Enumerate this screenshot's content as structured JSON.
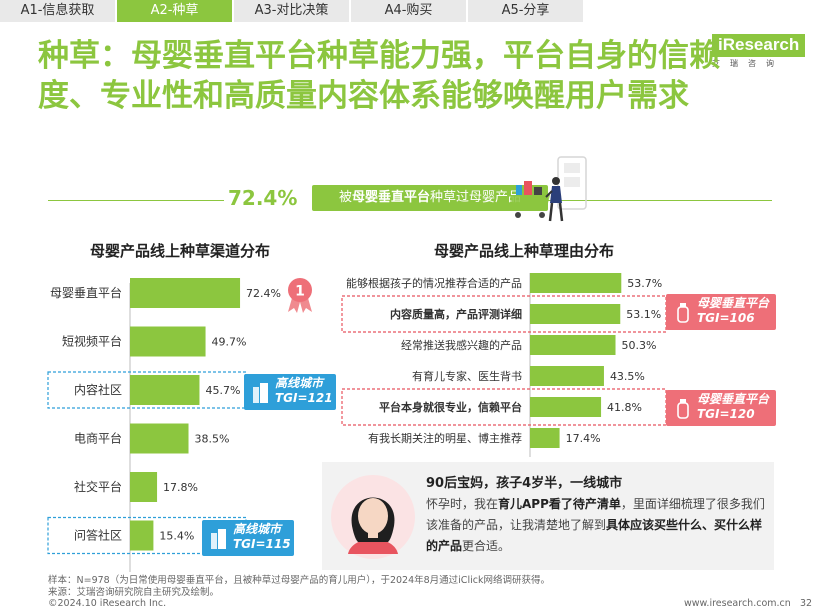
{
  "tabs": [
    "A1-信息获取",
    "A2-种草",
    "A3-对比决策",
    "A4-购买",
    "A5-分享"
  ],
  "active_tab": 1,
  "logo": {
    "word": "iResearch",
    "cn": "艾瑞咨询"
  },
  "title": "种草：母婴垂直平台种草能力强，平台自身的信赖度、专业性和高质量内容体系能够唤醒用户需求",
  "highlight": {
    "value": "72.4%",
    "prefix": "被",
    "bold": "母婴垂直平台",
    "suffix": "种草过母婴产品"
  },
  "colors": {
    "accent": "#8cc63f",
    "bar": "#8cc63f",
    "red": "#e8545f",
    "blue": "#2e9fd9"
  },
  "chart_data": [
    {
      "type": "bar",
      "orientation": "horizontal",
      "title": "母婴产品线上种草渠道分布",
      "categories": [
        "母婴垂直平台",
        "短视频平台",
        "内容社区",
        "电商平台",
        "社交平台",
        "问答社区"
      ],
      "values": [
        72.4,
        49.7,
        45.7,
        38.5,
        17.8,
        15.4
      ],
      "labels": [
        "72.4%",
        "49.7%",
        "45.7%",
        "38.5%",
        "17.8%",
        "15.4%"
      ],
      "xlim": [
        0,
        100
      ],
      "grid": false,
      "callouts": [
        {
          "row": 2,
          "line1": "高线城市",
          "line2": "TGI=121"
        },
        {
          "row": 5,
          "line1": "高线城市",
          "line2": "TGI=115"
        }
      ]
    },
    {
      "type": "bar",
      "orientation": "horizontal",
      "title": "母婴产品线上种草理由分布",
      "categories": [
        "能够根据孩子的情况推荐合适的产品",
        "内容质量高，产品评测详细",
        "经常推送我感兴趣的产品",
        "有育儿专家、医生背书",
        "平台本身就很专业，信赖平台",
        "有我长期关注的明星、博主推荐"
      ],
      "values": [
        53.7,
        53.1,
        50.3,
        43.5,
        41.8,
        17.4
      ],
      "labels": [
        "53.7%",
        "53.1%",
        "50.3%",
        "43.5%",
        "41.8%",
        "17.4%"
      ],
      "xlim": [
        0,
        100
      ],
      "grid": false,
      "bold_rows": [
        1,
        4
      ],
      "callouts": [
        {
          "row": 1,
          "line1": "母婴垂直平台",
          "line2": "TGI=106"
        },
        {
          "row": 4,
          "line1": "母婴垂直平台",
          "line2": "TGI=120"
        }
      ]
    }
  ],
  "rank_badge": "1",
  "quote": {
    "title": "90后宝妈，孩子4岁半，一线城市",
    "p1": "怀孕时，我在",
    "b1": "育儿APP看了待产清单",
    "p2": "，里面详细梳理了很多我们该准备的产品，让我清楚地了解到",
    "b2": "具体应该买些什么、买什么样的产品",
    "p3": "更合适。"
  },
  "notes": {
    "sample": "样本：N=978（为日常使用母婴垂直平台，且被种草过母婴产品的育儿用户），于2024年8月通过iClick网络调研获得。",
    "source": "来源：艾瑞咨询研究院自主研究及绘制。"
  },
  "footer": {
    "copyright": "©2024.10 iResearch Inc.",
    "site": "www.iresearch.com.cn",
    "page": "32"
  }
}
